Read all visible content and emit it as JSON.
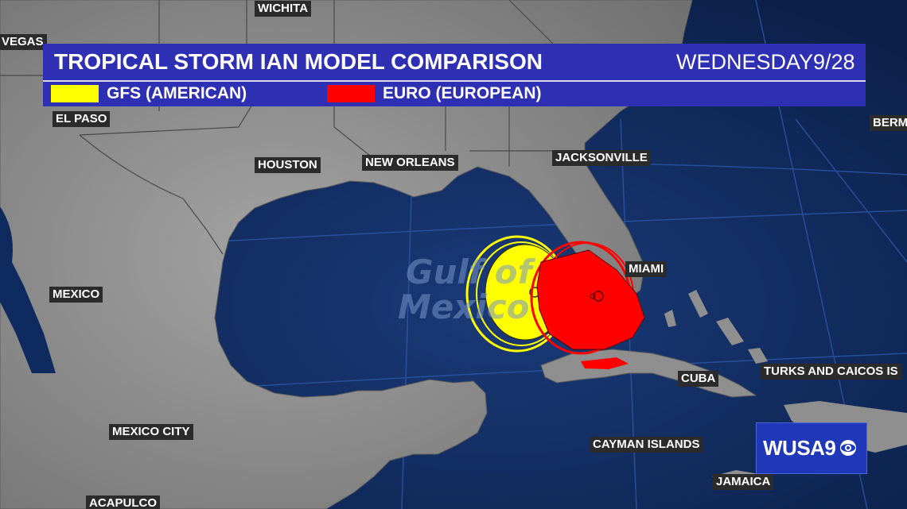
{
  "header": {
    "title": "TROPICAL STORM IAN MODEL COMPARISON",
    "day": "WEDNESDAY",
    "date": "9/28"
  },
  "legend": [
    {
      "label": "GFS (AMERICAN)",
      "color": "#ffff00"
    },
    {
      "label": "EURO (EUROPEAN)",
      "color": "#ff0000"
    }
  ],
  "map": {
    "water_label_line1": "Gulf of",
    "water_label_line2": "Mexico",
    "colors": {
      "land": "#8f8f8f",
      "water": "#0f2a5e",
      "label_bg": "#2b2b2b"
    },
    "cities": {
      "wichita": "WICHITA",
      "vegas": "VEGAS",
      "el_paso": "EL PASO",
      "houston": "HOUSTON",
      "new_orleans": "NEW ORLEANS",
      "jacksonville": "JACKSONVILLE",
      "bermuda": "BERM",
      "miami": "MIAMI",
      "mexico": "MEXICO",
      "cuba": "CUBA",
      "turks": "TURKS AND CAICOS IS",
      "mexico_city": "MEXICO CITY",
      "cayman": "CAYMAN ISLANDS",
      "jamaica": "JAMAICA",
      "acapulco": "ACAPULCO"
    }
  },
  "logo": {
    "text": "WUSA9",
    "icon": "cbs-eye-icon"
  }
}
